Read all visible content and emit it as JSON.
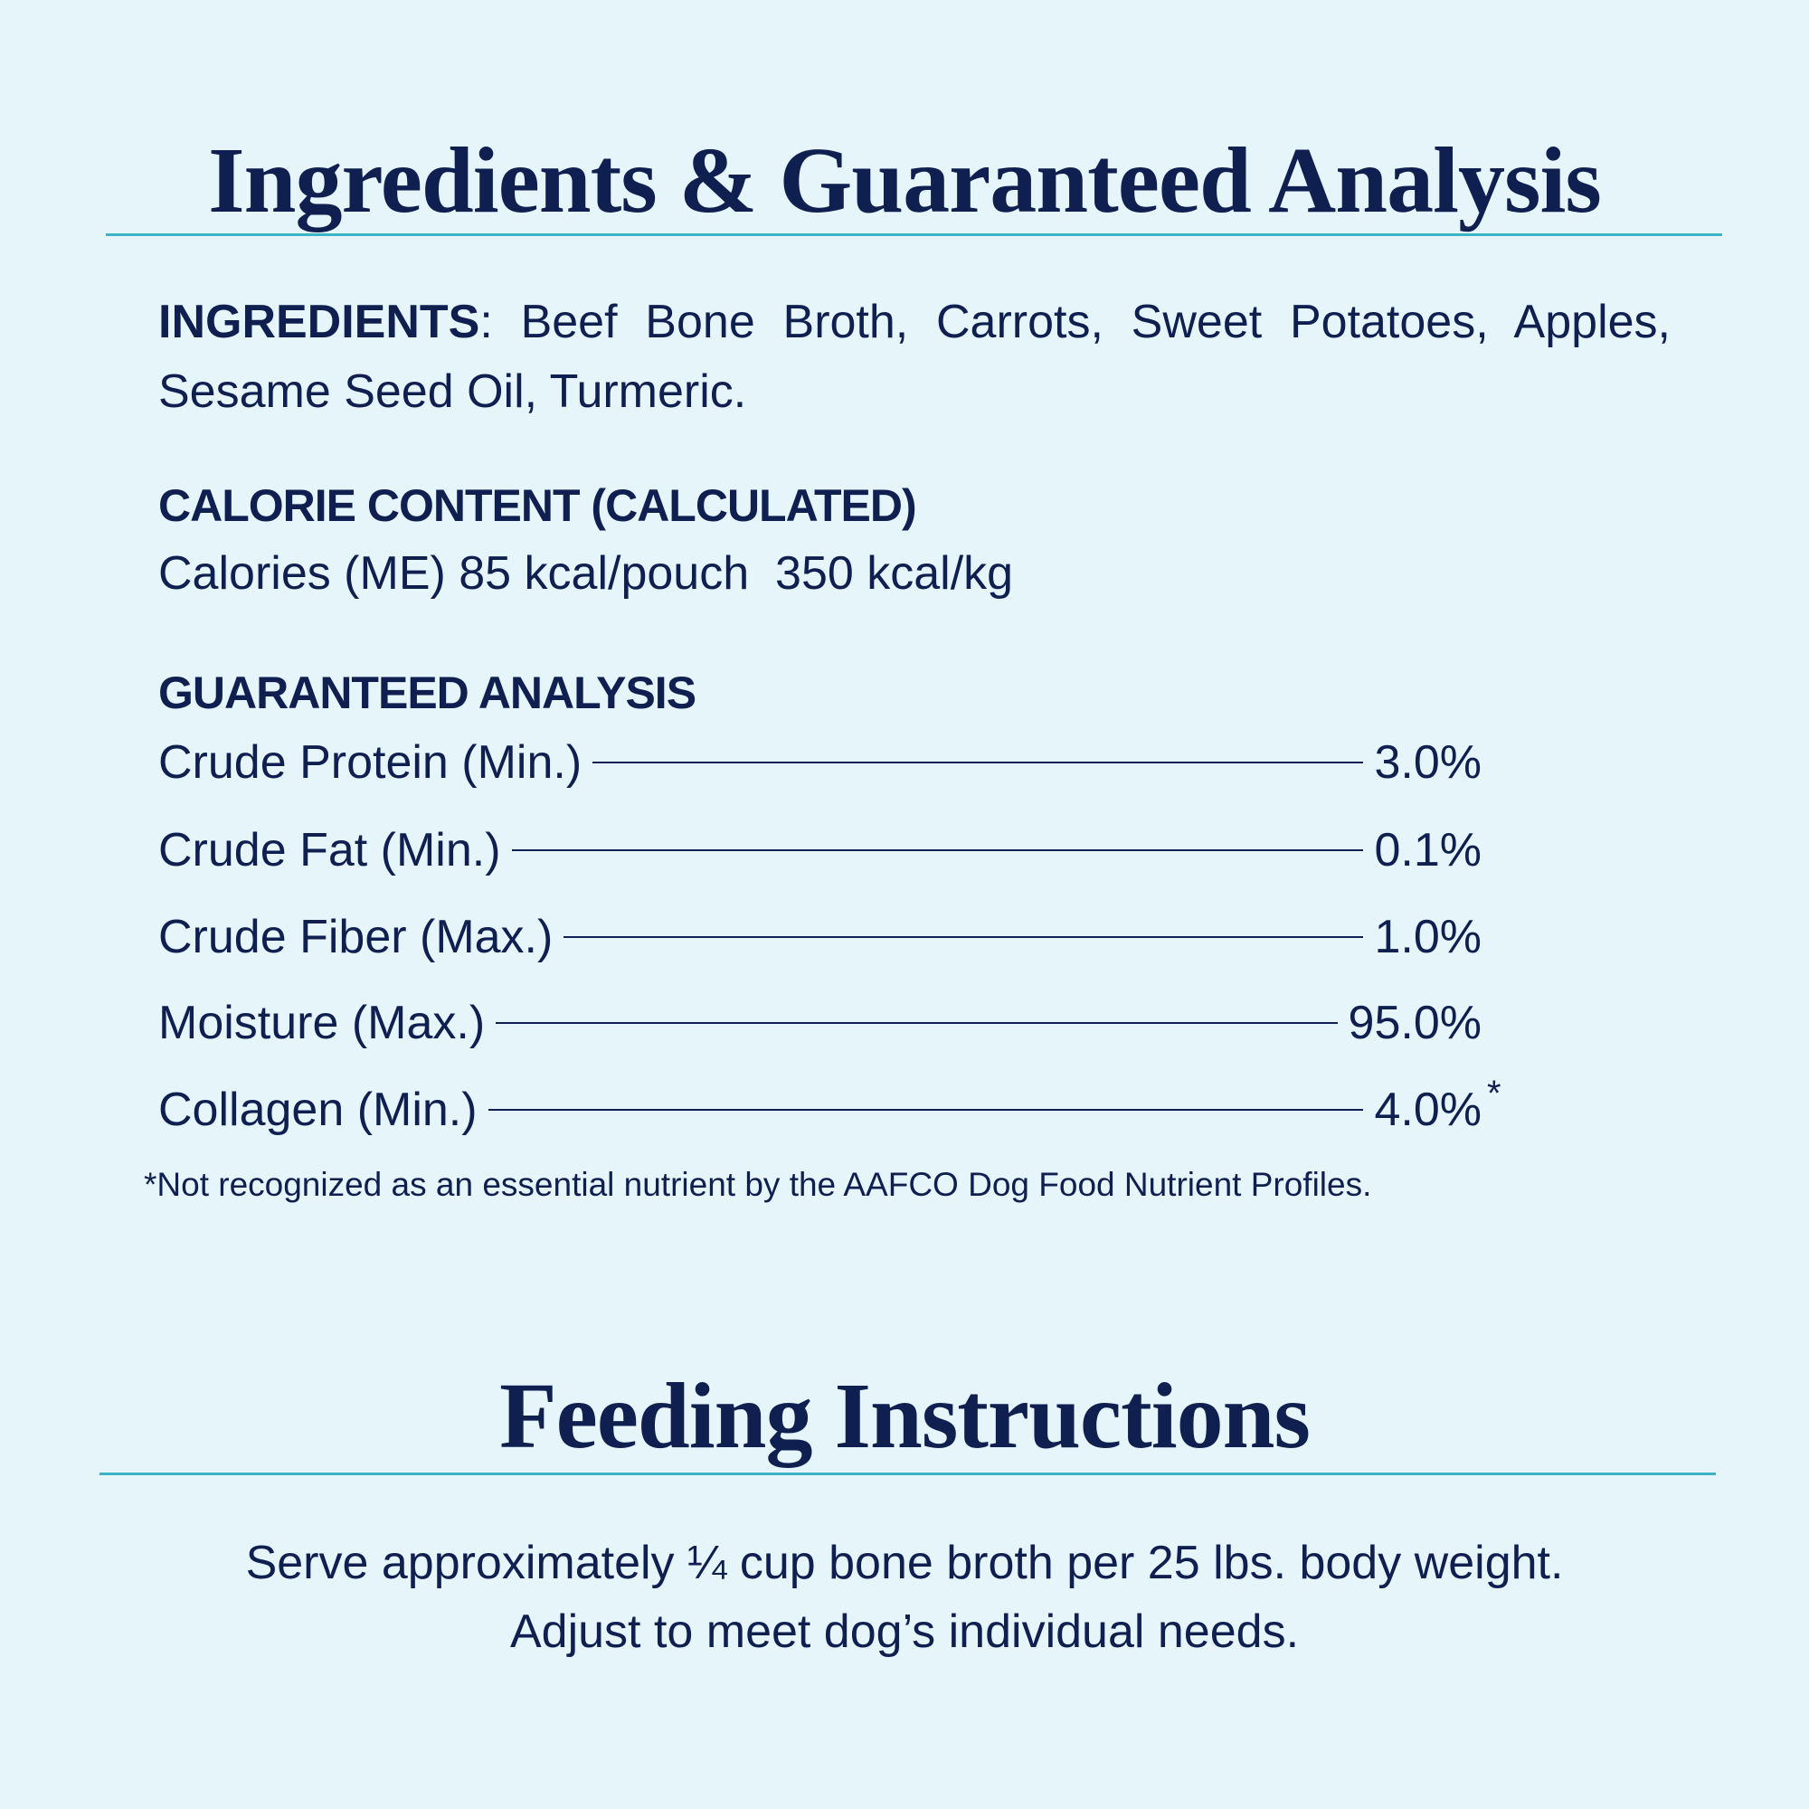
{
  "header": {
    "title": "Ingredients & Guaranteed Analysis"
  },
  "ingredients": {
    "label": "INGREDIENTS",
    "text": ": Beef Bone Broth, Carrots, Sweet Potatoes, Apples, Sesame Seed Oil, Turmeric."
  },
  "calorie_content": {
    "heading": "CALORIE CONTENT (CALCULATED)",
    "text": "Calories (ME) 85 kcal/pouch  350 kcal/kg"
  },
  "guaranteed_analysis": {
    "heading": "GUARANTEED ANALYSIS",
    "rows": [
      {
        "label": "Crude Protein (Min.)",
        "value": "3.0%"
      },
      {
        "label": "Crude Fat (Min.)",
        "value": "0.1%"
      },
      {
        "label": "Crude Fiber (Max.)",
        "value": "1.0%"
      },
      {
        "label": "Moisture (Max.)",
        "value": "95.0%"
      },
      {
        "label": "Collagen (Min.)",
        "value": "4.0%",
        "marker": "*"
      }
    ],
    "footnote": "*Not recognized as an essential nutrient by the AAFCO Dog Food Nutrient Profiles."
  },
  "feeding": {
    "title": "Feeding Instructions",
    "lines": [
      "Serve approximately ¼ cup bone broth per 25 lbs. body weight.",
      "Adjust to meet dog’s individual needs."
    ]
  }
}
